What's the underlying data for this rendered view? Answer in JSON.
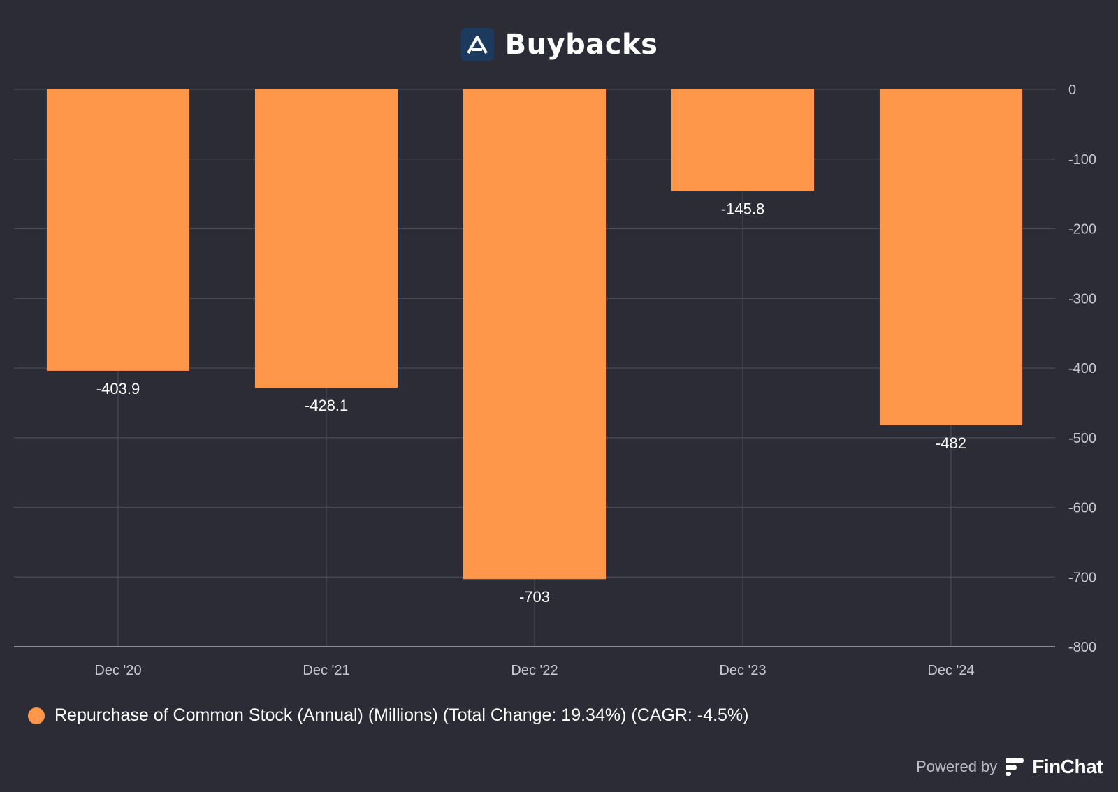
{
  "header": {
    "title": "Buybacks",
    "logo_icon": "company-logo-a-icon",
    "logo_color": "#1c3a5e"
  },
  "colors": {
    "background": "#2b2c35",
    "bar": "#ff974a",
    "grid": "#4a4b55",
    "axis_text": "#c9cad1"
  },
  "chart_data": {
    "type": "bar",
    "title": "Buybacks",
    "categories": [
      "Dec '20",
      "Dec '21",
      "Dec '22",
      "Dec '23",
      "Dec '24"
    ],
    "series": [
      {
        "name": "Repurchase of Common Stock (Annual) (Millions) (Total Change: 19.34%) (CAGR: -4.5%)",
        "values": [
          -403.9,
          -428.1,
          -703,
          -145.8,
          -482
        ],
        "value_labels": [
          "-403.9",
          "-428.1",
          "-703",
          "-145.8",
          "-482"
        ],
        "color": "#ff974a"
      }
    ],
    "y_ticks": [
      "0",
      "-100",
      "-200",
      "-300",
      "-400",
      "-500",
      "-600",
      "-700",
      "-800"
    ],
    "ylim": [
      -800,
      0
    ],
    "y_axis_side": "right",
    "grid": true,
    "legend_position": "bottom-left"
  },
  "legend": {
    "label": "Repurchase of Common Stock (Annual) (Millions) (Total Change: 19.34%) (CAGR: -4.5%)"
  },
  "footer": {
    "powered_by": "Powered by",
    "brand": "FinChat",
    "brand_icon": "finchat-logo-icon"
  }
}
